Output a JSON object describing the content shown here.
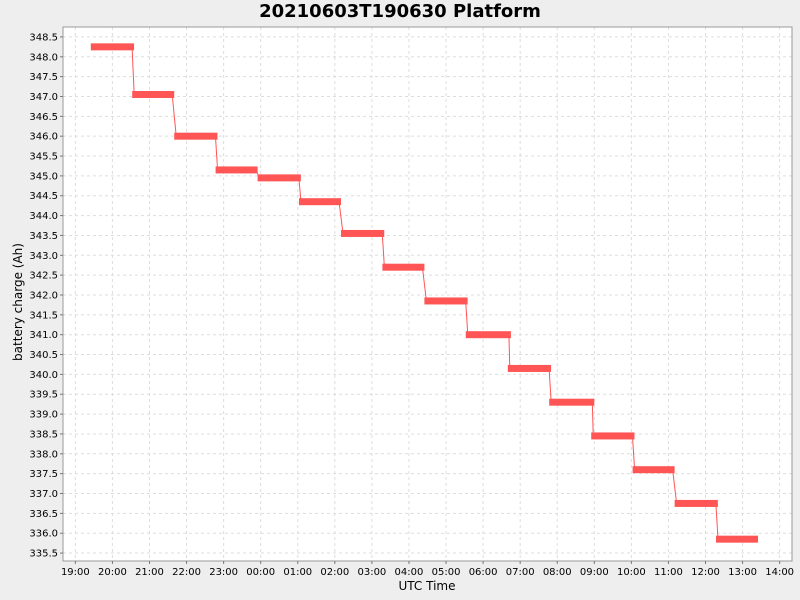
{
  "chart_data": {
    "type": "line",
    "title": "20210603T190630 Platform",
    "xlabel": "UTC Time",
    "ylabel": "battery charge (Ah)",
    "grid": true,
    "legend": "none",
    "series_color": "#ff5555",
    "connector_color": "#ff5555",
    "background_color": "#ffffff",
    "grid_color": "#dddddd",
    "x_ticks": [
      "19:00",
      "20:00",
      "21:00",
      "22:00",
      "23:00",
      "00:00",
      "01:00",
      "02:00",
      "03:00",
      "04:00",
      "05:00",
      "06:00",
      "07:00",
      "08:00",
      "09:00",
      "10:00",
      "11:00",
      "12:00",
      "13:00",
      "14:00"
    ],
    "xlim": [
      "2021-06-03T18:40",
      "2021-06-04T14:20"
    ],
    "ylim": [
      335.3,
      348.75
    ],
    "y_ticks": [
      335.5,
      336.0,
      336.5,
      337.0,
      337.5,
      338.0,
      338.5,
      339.0,
      339.5,
      340.0,
      340.5,
      341.0,
      341.5,
      342.0,
      342.5,
      343.0,
      343.5,
      344.0,
      344.5,
      345.0,
      345.5,
      346.0,
      346.5,
      347.0,
      347.5,
      348.0,
      348.5
    ],
    "segments": [
      {
        "start": "2021-06-03T19:25",
        "end": "2021-06-03T20:35",
        "value": 348.25
      },
      {
        "start": "2021-06-03T20:32",
        "end": "2021-06-03T21:40",
        "value": 347.05
      },
      {
        "start": "2021-06-03T21:40",
        "end": "2021-06-03T22:50",
        "value": 346.0
      },
      {
        "start": "2021-06-03T22:47",
        "end": "2021-06-03T23:55",
        "value": 345.15
      },
      {
        "start": "2021-06-03T23:55",
        "end": "2021-06-04T01:05",
        "value": 344.95
      },
      {
        "start": "2021-06-04T01:02",
        "end": "2021-06-04T02:10",
        "value": 344.35
      },
      {
        "start": "2021-06-04T02:10",
        "end": "2021-06-04T03:20",
        "value": 343.55
      },
      {
        "start": "2021-06-04T03:17",
        "end": "2021-06-04T04:25",
        "value": 342.7
      },
      {
        "start": "2021-06-04T04:25",
        "end": "2021-06-04T05:35",
        "value": 341.85
      },
      {
        "start": "2021-06-04T05:32",
        "end": "2021-06-04T06:45",
        "value": 341.0
      },
      {
        "start": "2021-06-04T06:40",
        "end": "2021-06-04T07:50",
        "value": 340.15
      },
      {
        "start": "2021-06-04T07:47",
        "end": "2021-06-04T09:00",
        "value": 339.3
      },
      {
        "start": "2021-06-04T08:55",
        "end": "2021-06-04T10:05",
        "value": 338.45
      },
      {
        "start": "2021-06-04T10:02",
        "end": "2021-06-04T11:10",
        "value": 337.6
      },
      {
        "start": "2021-06-04T11:10",
        "end": "2021-06-04T12:20",
        "value": 336.75
      },
      {
        "start": "2021-06-04T12:17",
        "end": "2021-06-04T13:25",
        "value": 335.85
      }
    ]
  }
}
